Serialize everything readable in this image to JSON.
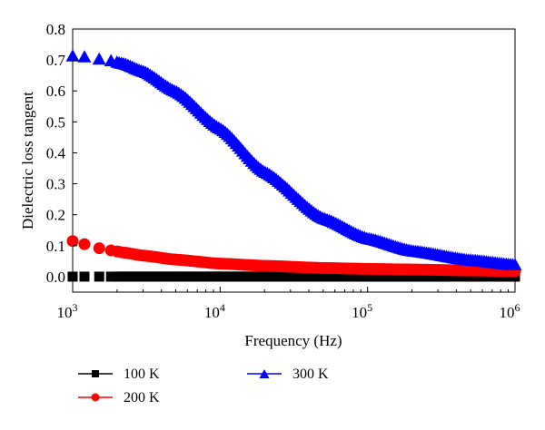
{
  "chart_data": {
    "type": "scatter",
    "xscale": "log",
    "xlabel": "Frequency (Hz)",
    "ylabel": "Dielectric loss tangent",
    "xlim": [
      1000,
      1000000
    ],
    "ylim": [
      -0.05,
      0.8
    ],
    "x_ticks": [
      {
        "value": 1000,
        "base": "10",
        "exp": "3"
      },
      {
        "value": 10000,
        "base": "10",
        "exp": "4"
      },
      {
        "value": 100000,
        "base": "10",
        "exp": "5"
      },
      {
        "value": 1000000,
        "base": "10",
        "exp": "6"
      }
    ],
    "y_ticks": [
      "0.0",
      "0.1",
      "0.2",
      "0.3",
      "0.4",
      "0.5",
      "0.6",
      "0.7",
      "0.8"
    ],
    "legend_placement": "bottom",
    "grid": false,
    "series": [
      {
        "name": "100 K",
        "color": "#000000",
        "marker": "square",
        "x": [
          1000,
          1200,
          1500,
          1800,
          2200,
          3000,
          5000,
          10000,
          20000,
          50000,
          100000,
          200000,
          500000,
          1000000
        ],
        "y": [
          0.0,
          0.0,
          0.0,
          0.0,
          0.0,
          0.0,
          0.0,
          0.0,
          0.0,
          0.0,
          0.0,
          0.0,
          0.0,
          0.0
        ]
      },
      {
        "name": "200 K",
        "color": "#ff0000",
        "marker": "circle",
        "x": [
          1000,
          1200,
          1500,
          1800,
          2200,
          3000,
          5000,
          10000,
          20000,
          50000,
          100000,
          200000,
          500000,
          1000000
        ],
        "y": [
          0.115,
          0.105,
          0.092,
          0.085,
          0.078,
          0.068,
          0.055,
          0.042,
          0.035,
          0.028,
          0.025,
          0.023,
          0.02,
          0.018
        ]
      },
      {
        "name": "300 K",
        "color": "#0000ff",
        "marker": "triangle",
        "x": [
          1000,
          1200,
          1500,
          1800,
          2200,
          3000,
          5000,
          10000,
          20000,
          50000,
          100000,
          200000,
          500000,
          1000000
        ],
        "y": [
          0.715,
          0.712,
          0.705,
          0.7,
          0.69,
          0.665,
          0.6,
          0.48,
          0.34,
          0.19,
          0.125,
          0.085,
          0.055,
          0.04
        ]
      }
    ]
  }
}
